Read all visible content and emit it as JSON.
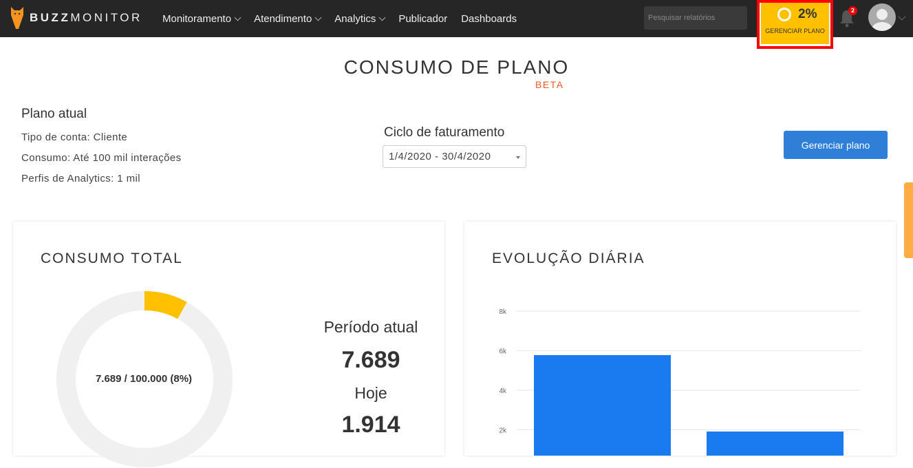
{
  "nav": {
    "brand_bold": "BUZZ",
    "brand_light": "MONITOR",
    "menu": [
      {
        "label": "Monitoramento",
        "dropdown": true
      },
      {
        "label": "Atendimento",
        "dropdown": true
      },
      {
        "label": "Analytics",
        "dropdown": true
      },
      {
        "label": "Publicador",
        "dropdown": false
      },
      {
        "label": "Dashboards",
        "dropdown": false
      }
    ],
    "search_placeholder": "Pesquisar relatórios",
    "plan_percent": "2%",
    "plan_label": "GERENCIAR PLANO",
    "notification_count": "2"
  },
  "page": {
    "title": "CONSUMO DE PLANO",
    "badge": "BETA"
  },
  "plan": {
    "heading": "Plano atual",
    "account_type": "Tipo de conta: Cliente",
    "consumption": "Consumo: Até 100 mil interações",
    "analytics_profiles": "Perfis de Analytics: 1 mil"
  },
  "billing": {
    "heading": "Ciclo de faturamento",
    "selected": "1/4/2020 - 30/4/2020"
  },
  "manage_button": "Gerenciar plano",
  "total": {
    "heading": "CONSUMO TOTAL",
    "donut_label": "7.689 / 100.000 (8%)",
    "fraction": 0.08,
    "period_label": "Período atual",
    "period_value": "7.689",
    "today_label": "Hoje",
    "today_value": "1.914"
  },
  "colors": {
    "accent": "#ffc000",
    "bar": "#1a7af0",
    "brand_orange": "#f15a24"
  },
  "chart_data": {
    "type": "bar",
    "title": "EVOLUÇÃO DIÁRIA",
    "values": [
      5775,
      1914
    ],
    "y_ticks": [
      "2k",
      "4k",
      "6k",
      "8k"
    ],
    "ylim": [
      0,
      8000
    ],
    "grid": true
  }
}
